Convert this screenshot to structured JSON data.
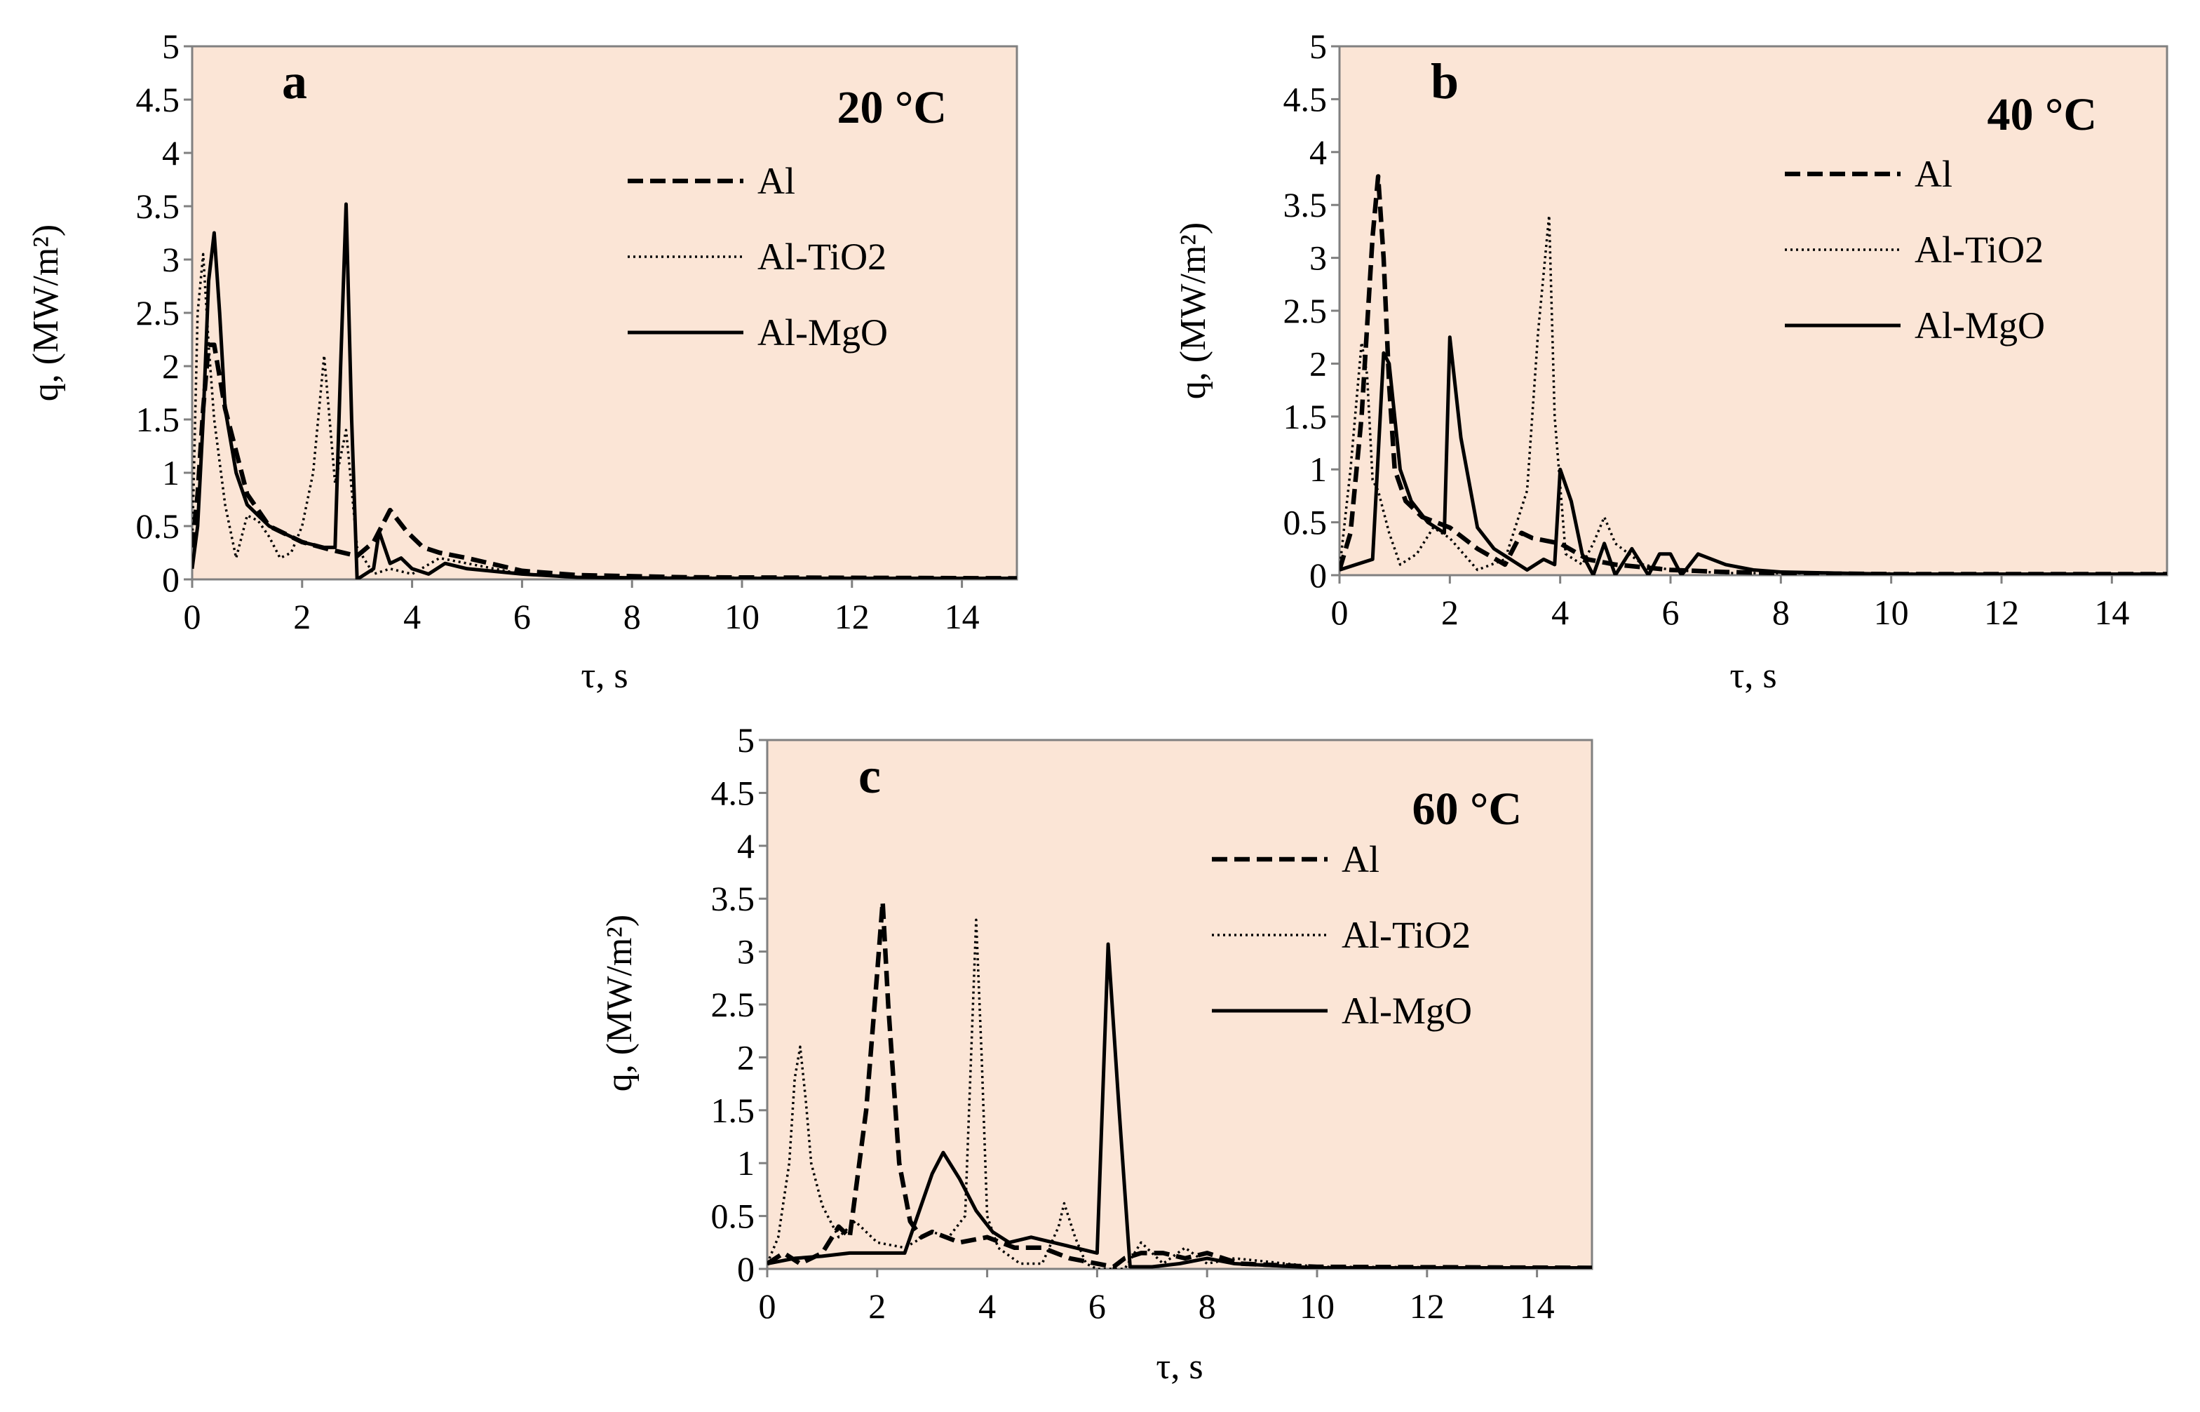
{
  "figure": {
    "background": "#ffffff",
    "plot_fill": "#fbe5d6",
    "axis_color": "#808080",
    "line_color": "#000000"
  },
  "chart_data": [
    {
      "type": "line",
      "panel_letter": "a",
      "temperature_label": "20 °C",
      "xlabel": "τ, s",
      "ylabel": "q, (MW/m²)",
      "xlim": [
        0,
        15
      ],
      "ylim": [
        0,
        5
      ],
      "xticks": [
        "0",
        "2",
        "4",
        "6",
        "8",
        "10",
        "12",
        "14"
      ],
      "yticks": [
        "0",
        "0.5",
        "1",
        "1.5",
        "2",
        "2.5",
        "3",
        "3.5",
        "4",
        "4.5",
        "5"
      ],
      "legend": {
        "position": "top-right"
      },
      "series": [
        {
          "name": "Al",
          "style": "dashed",
          "x": [
            0,
            0.1,
            0.2,
            0.3,
            0.4,
            0.5,
            0.6,
            0.8,
            1,
            1.4,
            2,
            2.5,
            3,
            3.3,
            3.6,
            3.9,
            4.2,
            4.5,
            5,
            6,
            7,
            9,
            15
          ],
          "y": [
            0.3,
            0.8,
            1.6,
            2.2,
            2.2,
            1.9,
            1.6,
            1.2,
            0.8,
            0.5,
            0.35,
            0.28,
            0.22,
            0.35,
            0.65,
            0.45,
            0.3,
            0.25,
            0.2,
            0.08,
            0.04,
            0.02,
            0.01
          ]
        },
        {
          "name": "Al-TiO2",
          "style": "dotted",
          "x": [
            0,
            0.1,
            0.2,
            0.3,
            0.4,
            0.5,
            0.6,
            0.8,
            1,
            1.2,
            1.4,
            1.6,
            1.8,
            2,
            2.2,
            2.4,
            2.6,
            2.8,
            3,
            3.3,
            3.6,
            4,
            4.5,
            5,
            6,
            7,
            15
          ],
          "y": [
            0.3,
            2.5,
            3.05,
            2.2,
            1.5,
            1.1,
            0.7,
            0.2,
            0.6,
            0.55,
            0.4,
            0.2,
            0.25,
            0.5,
            1.0,
            2.1,
            0.9,
            1.4,
            0.3,
            0.05,
            0.1,
            0.05,
            0.2,
            0.15,
            0.05,
            0.02,
            0.01
          ]
        },
        {
          "name": "Al-MgO",
          "style": "solid",
          "x": [
            0,
            0.1,
            0.2,
            0.3,
            0.4,
            0.5,
            0.6,
            0.8,
            1,
            1.4,
            2,
            2.4,
            2.6,
            2.7,
            2.8,
            2.9,
            3.0,
            3.3,
            3.4,
            3.6,
            3.8,
            4,
            4.3,
            4.6,
            5,
            6,
            7,
            9,
            15
          ],
          "y": [
            0.1,
            0.5,
            1.5,
            2.8,
            3.25,
            2.5,
            1.6,
            1.0,
            0.7,
            0.5,
            0.35,
            0.3,
            0.3,
            2.0,
            3.52,
            1.5,
            0.0,
            0.1,
            0.45,
            0.15,
            0.2,
            0.1,
            0.05,
            0.15,
            0.1,
            0.05,
            0.02,
            0.01,
            0.01
          ]
        }
      ]
    },
    {
      "type": "line",
      "panel_letter": "b",
      "temperature_label": "40 °C",
      "xlabel": "τ, s",
      "ylabel": "q, (MW/m²)",
      "xlim": [
        0,
        15
      ],
      "ylim": [
        0,
        5
      ],
      "xticks": [
        "0",
        "2",
        "4",
        "6",
        "8",
        "10",
        "12",
        "14"
      ],
      "yticks": [
        "0",
        "0.5",
        "1",
        "1.5",
        "2",
        "2.5",
        "3",
        "3.5",
        "4",
        "4.5",
        "5"
      ],
      "legend": {
        "position": "top-right"
      },
      "series": [
        {
          "name": "Al",
          "style": "dashed",
          "x": [
            0,
            0.2,
            0.4,
            0.6,
            0.7,
            0.8,
            0.9,
            1.0,
            1.2,
            1.5,
            2,
            2.5,
            3,
            3.3,
            3.5,
            4,
            4.5,
            5,
            6,
            7,
            8,
            10,
            15
          ],
          "y": [
            0.05,
            0.4,
            1.5,
            3.2,
            3.77,
            3.0,
            1.8,
            1.0,
            0.7,
            0.55,
            0.45,
            0.25,
            0.1,
            0.4,
            0.35,
            0.3,
            0.15,
            0.1,
            0.05,
            0.03,
            0.02,
            0.01,
            0.01
          ]
        },
        {
          "name": "Al-TiO2",
          "style": "dotted",
          "x": [
            0,
            0.2,
            0.4,
            0.5,
            0.6,
            0.7,
            0.8,
            0.9,
            1.1,
            1.4,
            1.7,
            2,
            2.5,
            3,
            3.4,
            3.6,
            3.8,
            3.9,
            4.1,
            4.4,
            4.6,
            4.8,
            5,
            5.5,
            6,
            7,
            15
          ],
          "y": [
            0.05,
            1.0,
            2.2,
            1.9,
            0.9,
            0.8,
            0.6,
            0.4,
            0.1,
            0.2,
            0.45,
            0.35,
            0.05,
            0.15,
            0.8,
            2.3,
            3.4,
            1.5,
            0.2,
            0.1,
            0.3,
            0.55,
            0.3,
            0.1,
            0.05,
            0.02,
            0.01
          ]
        },
        {
          "name": "Al-MgO",
          "style": "solid",
          "x": [
            0,
            0.3,
            0.6,
            0.8,
            0.9,
            1.1,
            1.3,
            1.6,
            1.9,
            2.0,
            2.2,
            2.5,
            2.8,
            3.1,
            3.4,
            3.7,
            3.9,
            4.0,
            4.2,
            4.4,
            4.6,
            4.8,
            5,
            5.3,
            5.6,
            5.8,
            6,
            6.2,
            6.5,
            7,
            7.5,
            8,
            10,
            15
          ],
          "y": [
            0.05,
            0.1,
            0.15,
            2.1,
            2.0,
            1.0,
            0.7,
            0.5,
            0.4,
            2.25,
            1.3,
            0.45,
            0.25,
            0.15,
            0.05,
            0.15,
            0.1,
            1.0,
            0.7,
            0.2,
            0.0,
            0.3,
            0.0,
            0.25,
            0.0,
            0.2,
            0.2,
            0.0,
            0.2,
            0.1,
            0.05,
            0.03,
            0.01,
            0.01
          ]
        }
      ]
    },
    {
      "type": "line",
      "panel_letter": "c",
      "temperature_label": "60 °C",
      "xlabel": "τ, s",
      "ylabel": "q, (MW/m²)",
      "xlim": [
        0,
        15
      ],
      "ylim": [
        0,
        5
      ],
      "xticks": [
        "0",
        "2",
        "4",
        "6",
        "8",
        "10",
        "12",
        "14"
      ],
      "yticks": [
        "0",
        "0.5",
        "1",
        "1.5",
        "2",
        "2.5",
        "3",
        "3.5",
        "4",
        "4.5",
        "5"
      ],
      "legend": {
        "position": "top-right"
      },
      "series": [
        {
          "name": "Al",
          "style": "dashed",
          "x": [
            0,
            0.3,
            0.6,
            1.0,
            1.3,
            1.5,
            1.8,
            2.0,
            2.1,
            2.2,
            2.4,
            2.6,
            2.8,
            3,
            3.5,
            4,
            4.5,
            5,
            5.5,
            6,
            6.3,
            6.5,
            6.8,
            7.2,
            7.6,
            8,
            8.6,
            10,
            15
          ],
          "y": [
            0.05,
            0.15,
            0.05,
            0.15,
            0.4,
            0.3,
            1.5,
            2.8,
            3.47,
            2.5,
            1.0,
            0.45,
            0.3,
            0.35,
            0.25,
            0.3,
            0.2,
            0.2,
            0.1,
            0.05,
            0.02,
            0.1,
            0.15,
            0.15,
            0.1,
            0.15,
            0.05,
            0.02,
            0.01
          ]
        },
        {
          "name": "Al-TiO2",
          "style": "dotted",
          "x": [
            0,
            0.2,
            0.4,
            0.5,
            0.6,
            0.7,
            0.8,
            1.0,
            1.3,
            1.6,
            2,
            2.5,
            3,
            3.3,
            3.6,
            3.8,
            3.9,
            4.0,
            4.2,
            4.6,
            5.0,
            5.3,
            5.4,
            5.6,
            5.8,
            6.0,
            6.5,
            6.8,
            7.2,
            7.6,
            8,
            8.5,
            10,
            15
          ],
          "y": [
            0.05,
            0.3,
            1.0,
            1.8,
            2.1,
            1.6,
            1.0,
            0.6,
            0.3,
            0.45,
            0.25,
            0.2,
            0.35,
            0.3,
            0.5,
            3.3,
            2.0,
            0.5,
            0.2,
            0.05,
            0.05,
            0.4,
            0.62,
            0.3,
            0.05,
            0.0,
            0.0,
            0.25,
            0.05,
            0.2,
            0.05,
            0.1,
            0.02,
            0.01
          ]
        },
        {
          "name": "Al-MgO",
          "style": "solid",
          "x": [
            0,
            0.5,
            1,
            1.5,
            2,
            2.5,
            2.8,
            3.0,
            3.2,
            3.5,
            3.8,
            4.1,
            4.4,
            4.8,
            5.2,
            5.6,
            6.0,
            6.2,
            6.4,
            6.6,
            7.0,
            7.5,
            8,
            8.5,
            10,
            15
          ],
          "y": [
            0.05,
            0.1,
            0.12,
            0.15,
            0.15,
            0.15,
            0.6,
            0.9,
            1.1,
            0.85,
            0.55,
            0.35,
            0.25,
            0.3,
            0.25,
            0.2,
            0.15,
            3.07,
            1.5,
            0.02,
            0.02,
            0.05,
            0.1,
            0.05,
            0.01,
            0.01
          ]
        }
      ]
    }
  ]
}
